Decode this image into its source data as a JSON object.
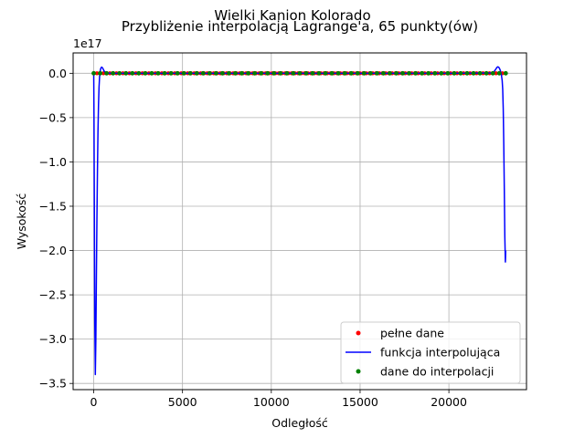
{
  "chart_data": {
    "type": "line",
    "suptitle": "Wielki Kanion Kolorado",
    "title": "Przybliżenie interpolacją Lagrange'a, 65 punkty(ów)",
    "xlabel": "Odległość",
    "ylabel": "Wysokość",
    "y_offset_label": "1e17",
    "xlim": [
      -1160,
      24370
    ],
    "ylim": [
      -3.57,
      0.23
    ],
    "grid": true,
    "legend_placement": "lower-right",
    "x_ticks": [
      {
        "value": 0,
        "label": "0"
      },
      {
        "value": 5000,
        "label": "5000"
      },
      {
        "value": 10000,
        "label": "10000"
      },
      {
        "value": 15000,
        "label": "15000"
      },
      {
        "value": 20000,
        "label": "20000"
      }
    ],
    "y_ticks": [
      {
        "value": 0.0,
        "label": "0.0"
      },
      {
        "value": -0.5,
        "label": "−0.5"
      },
      {
        "value": -1.0,
        "label": "−1.0"
      },
      {
        "value": -1.5,
        "label": "−1.5"
      },
      {
        "value": -2.0,
        "label": "−2.0"
      },
      {
        "value": -2.5,
        "label": "−2.5"
      },
      {
        "value": -3.0,
        "label": "−3.0"
      },
      {
        "value": -3.5,
        "label": "−3.5"
      }
    ],
    "series": [
      {
        "name": "pełne dane",
        "kind": "points",
        "color": "#ff0000",
        "x_start": 0,
        "x_end": 23200,
        "count": 128,
        "y": 0
      },
      {
        "name": "funkcja interpolująca",
        "kind": "line",
        "color": "#0000ff",
        "x": [
          0,
          15,
          35,
          60,
          90,
          120,
          150,
          180,
          210,
          240,
          270,
          300,
          330,
          360,
          390,
          420,
          450,
          500,
          550,
          600,
          700,
          1000,
          5000,
          10000,
          15000,
          20000,
          22400,
          22500,
          22550,
          22600,
          22650,
          22700,
          22750,
          22800,
          22850,
          22900,
          22950,
          23000,
          23030,
          23060,
          23090,
          23120,
          23150,
          23180,
          23200
        ],
        "y": [
          -0.004,
          -0.5,
          -1.5,
          -2.8,
          -3.4,
          -3.0,
          -2.3,
          -1.65,
          -1.1,
          -0.65,
          -0.35,
          -0.15,
          -0.04,
          0.02,
          0.05,
          0.065,
          0.07,
          0.06,
          0.04,
          0.02,
          0.005,
          0.0,
          0.0,
          0.0,
          0.0,
          0.0,
          0.003,
          0.01,
          0.02,
          0.035,
          0.05,
          0.065,
          0.073,
          0.07,
          0.055,
          0.03,
          -0.01,
          -0.08,
          -0.18,
          -0.4,
          -0.8,
          -1.3,
          -1.85,
          -2.13,
          -2.0
        ]
      },
      {
        "name": "dane do interpolacji",
        "kind": "points",
        "color": "#008000",
        "x_start": 0,
        "x_end": 23200,
        "count": 65,
        "y": 0
      }
    ]
  }
}
